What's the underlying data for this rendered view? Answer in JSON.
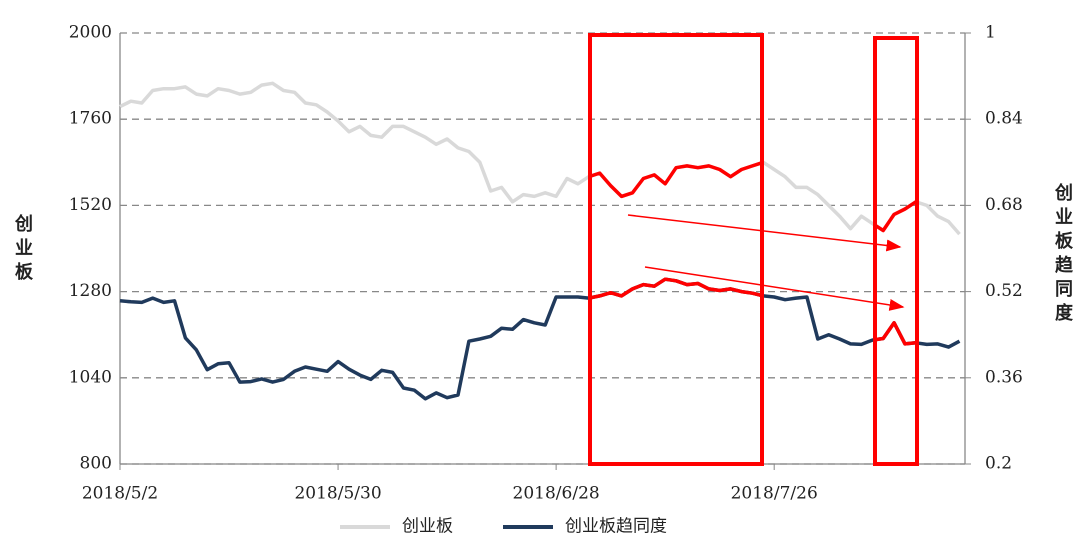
{
  "chart_data": {
    "type": "line",
    "categories": [
      "2018/5/2",
      null,
      null,
      null,
      null,
      null,
      null,
      null,
      null,
      null,
      null,
      null,
      null,
      null,
      null,
      null,
      null,
      null,
      null,
      null,
      "2018/5/30",
      null,
      null,
      null,
      null,
      null,
      null,
      null,
      null,
      null,
      null,
      null,
      null,
      null,
      null,
      null,
      null,
      null,
      null,
      null,
      "2018/6/28",
      null,
      null,
      null,
      null,
      null,
      null,
      null,
      null,
      null,
      null,
      null,
      null,
      null,
      null,
      null,
      null,
      null,
      null,
      null,
      "2018/7/26",
      null,
      null,
      null,
      null,
      null,
      null,
      null,
      null,
      null,
      null,
      null,
      null,
      null,
      null,
      null,
      null,
      null
    ],
    "series": [
      {
        "name": "创业板",
        "color": "#d9d9d9",
        "values": [
          1795,
          1810,
          1805,
          1840,
          1845,
          1845,
          1850,
          1830,
          1825,
          1845,
          1840,
          1830,
          1835,
          1855,
          1860,
          1840,
          1835,
          1805,
          1800,
          1780,
          1755,
          1725,
          1740,
          1715,
          1710,
          1740,
          1740,
          1725,
          1710,
          1690,
          1705,
          1680,
          1670,
          1640,
          1560,
          1570,
          1530,
          1550,
          1545,
          1555,
          1545,
          1595,
          1580,
          1600,
          1610,
          1575,
          1545,
          1555,
          1595,
          1605,
          1580,
          1625,
          1630,
          1625,
          1630,
          1620,
          1600,
          1620,
          1630,
          1640,
          1620,
          1600,
          1570,
          1570,
          1550,
          1520,
          1490,
          1455,
          1490,
          1470,
          1450,
          1495,
          1510,
          1530,
          1520,
          1490,
          1475,
          1440
        ]
      },
      {
        "name": "创业板趋同度",
        "color": "#203a5c",
        "axis": "y2",
        "values": [
          0.503,
          0.501,
          0.5,
          0.508,
          0.5,
          0.503,
          0.434,
          0.412,
          0.375,
          0.386,
          0.388,
          0.352,
          0.353,
          0.358,
          0.352,
          0.357,
          0.372,
          0.38,
          0.376,
          0.372,
          0.39,
          0.376,
          0.365,
          0.357,
          0.374,
          0.37,
          0.341,
          0.337,
          0.321,
          0.332,
          0.323,
          0.328,
          0.428,
          0.432,
          0.437,
          0.452,
          0.45,
          0.468,
          0.462,
          0.458,
          0.51,
          0.51,
          0.51,
          0.508,
          0.512,
          0.518,
          0.512,
          0.525,
          0.533,
          0.53,
          0.543,
          0.54,
          0.533,
          0.535,
          0.525,
          0.522,
          0.525,
          0.52,
          0.517,
          0.512,
          0.51,
          0.505,
          0.508,
          0.51,
          0.432,
          0.44,
          0.432,
          0.423,
          0.422,
          0.43,
          0.433,
          0.462,
          0.423,
          0.425,
          0.422,
          0.423,
          0.417,
          0.428
        ]
      }
    ],
    "ylim": [
      800,
      2000
    ],
    "yticks": [
      800,
      1040,
      1280,
      1520,
      1760,
      2000
    ],
    "y2lim": [
      0.2,
      1
    ],
    "y2ticks": [
      0.2,
      0.36,
      0.52,
      0.68,
      0.84,
      1
    ],
    "ylabel": "创业板",
    "y2label": "创业板趋同度",
    "grid": true,
    "legend": "bottom"
  }
}
